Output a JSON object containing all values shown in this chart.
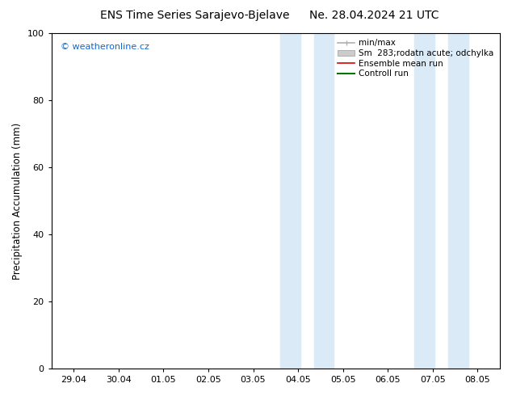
{
  "title_left": "ENS Time Series Sarajevo-Bjelave",
  "title_right": "Ne. 28.04.2024 21 UTC",
  "ylabel": "Precipitation Accumulation (mm)",
  "ylim": [
    0,
    100
  ],
  "yticks": [
    0,
    20,
    40,
    60,
    80,
    100
  ],
  "x_labels": [
    "29.04",
    "30.04",
    "01.05",
    "02.05",
    "03.05",
    "04.05",
    "05.05",
    "06.05",
    "07.05",
    "08.05"
  ],
  "x_values": [
    0,
    1,
    2,
    3,
    4,
    5,
    6,
    7,
    8,
    9
  ],
  "xlim_min": -0.5,
  "xlim_max": 9.5,
  "shaded_regions": [
    {
      "x_start": 4.6,
      "x_end": 5.05,
      "color": "#daeaf7"
    },
    {
      "x_start": 5.35,
      "x_end": 5.8,
      "color": "#daeaf7"
    },
    {
      "x_start": 7.6,
      "x_end": 8.05,
      "color": "#daeaf7"
    },
    {
      "x_start": 8.35,
      "x_end": 8.8,
      "color": "#daeaf7"
    }
  ],
  "watermark_text": "© weatheronline.cz",
  "watermark_color": "#1166cc",
  "legend_entries": [
    {
      "label": "min/max",
      "color": "#b0b0b0",
      "lw": 1.2,
      "type": "errorbar"
    },
    {
      "label": "Sm  283;rodatn acute; odchylka",
      "color": "#cccccc",
      "lw": 6,
      "type": "fill"
    },
    {
      "label": "Ensemble mean run",
      "color": "#dd0000",
      "lw": 1.2,
      "type": "line"
    },
    {
      "label": "Controll run",
      "color": "#007700",
      "lw": 1.5,
      "type": "line"
    }
  ],
  "background_color": "#ffffff",
  "plot_bg_color": "#ffffff",
  "title_fontsize": 10,
  "tick_fontsize": 8,
  "ylabel_fontsize": 8.5,
  "legend_fontsize": 7.5
}
